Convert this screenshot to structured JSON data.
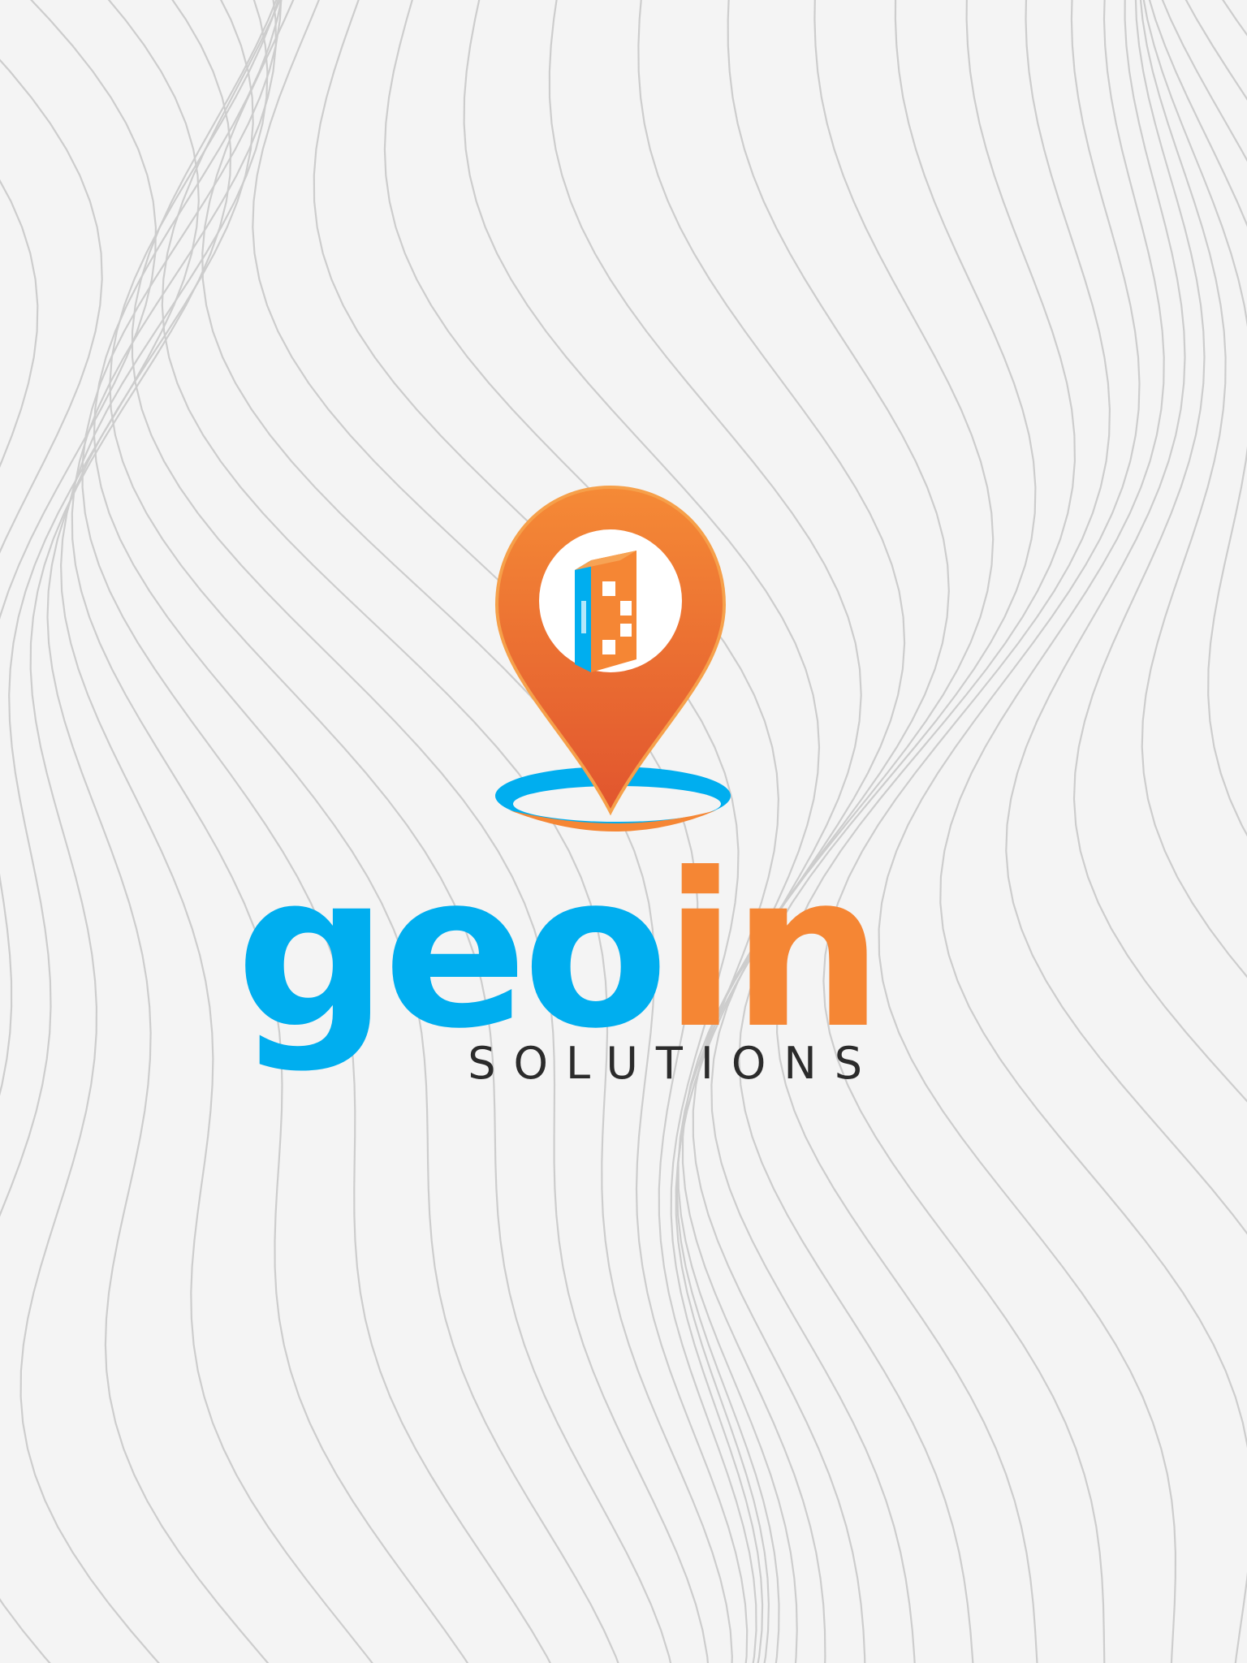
{
  "splash": {
    "brand": {
      "word_part_1": "geo",
      "word_part_2": "in",
      "tagline": "SOLUTIONS"
    },
    "colors": {
      "background": "#f4f4f4",
      "contour_line": "#cfcfcf",
      "brand_blue": "#00aeef",
      "brand_orange": "#f58634",
      "pin_orange_dark": "#e1552e",
      "tagline_text": "#2b2b2b"
    },
    "icons": {
      "pin": "location-pin-icon",
      "building": "building-icon"
    }
  }
}
